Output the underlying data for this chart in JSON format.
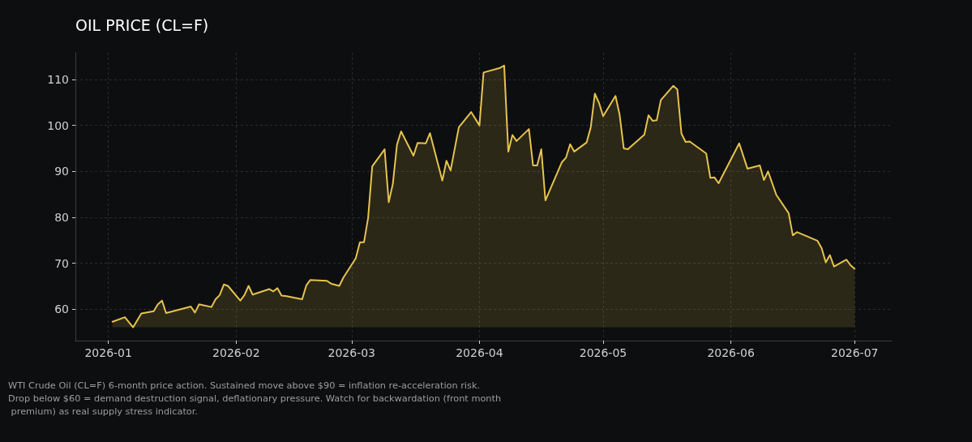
{
  "chart_data": {
    "type": "area",
    "title": "OIL PRICE (CL=F)",
    "x": [
      "2026-01-02",
      "2026-01-05",
      "2026-01-07",
      "2026-01-09",
      "2026-01-12",
      "2026-01-13",
      "2026-01-14",
      "2026-01-15",
      "2026-01-21",
      "2026-01-22",
      "2026-01-23",
      "2026-01-26",
      "2026-01-27",
      "2026-01-28",
      "2026-01-29",
      "2026-01-30",
      "2026-02-02",
      "2026-02-03",
      "2026-02-04",
      "2026-02-05",
      "2026-02-09",
      "2026-02-10",
      "2026-02-11",
      "2026-02-12",
      "2026-02-13",
      "2026-02-17",
      "2026-02-18",
      "2026-02-19",
      "2026-02-23",
      "2026-02-24",
      "2026-02-26",
      "2026-02-27",
      "2026-03-02",
      "2026-03-03",
      "2026-03-04",
      "2026-03-05",
      "2026-03-06",
      "2026-03-09",
      "2026-03-10",
      "2026-03-11",
      "2026-03-12",
      "2026-03-13",
      "2026-03-16",
      "2026-03-17",
      "2026-03-19",
      "2026-03-20",
      "2026-03-23",
      "2026-03-24",
      "2026-03-25",
      "2026-03-27",
      "2026-03-30",
      "2026-04-01",
      "2026-04-02",
      "2026-04-06",
      "2026-04-07",
      "2026-04-08",
      "2026-04-09",
      "2026-04-10",
      "2026-04-13",
      "2026-04-14",
      "2026-04-15",
      "2026-04-16",
      "2026-04-17",
      "2026-04-21",
      "2026-04-22",
      "2026-04-23",
      "2026-04-24",
      "2026-04-27",
      "2026-04-28",
      "2026-04-29",
      "2026-04-30",
      "2026-05-01",
      "2026-05-04",
      "2026-05-05",
      "2026-05-06",
      "2026-05-07",
      "2026-05-11",
      "2026-05-12",
      "2026-05-13",
      "2026-05-14",
      "2026-05-15",
      "2026-05-18",
      "2026-05-19",
      "2026-05-20",
      "2026-05-21",
      "2026-05-22",
      "2026-05-26",
      "2026-05-27",
      "2026-05-28",
      "2026-05-29",
      "2026-06-03",
      "2026-06-05",
      "2026-06-08",
      "2026-06-09",
      "2026-06-10",
      "2026-06-12",
      "2026-06-15",
      "2026-06-16",
      "2026-06-17",
      "2026-06-22",
      "2026-06-23",
      "2026-06-24",
      "2026-06-25",
      "2026-06-26",
      "2026-06-29",
      "2026-06-30",
      "2026-07-01"
    ],
    "values": [
      57.3,
      58.3,
      56.1,
      59.1,
      59.6,
      61.1,
      61.9,
      59.2,
      60.6,
      59.3,
      61.1,
      60.5,
      62.2,
      63.1,
      65.4,
      65.1,
      61.9,
      63.1,
      65.1,
      63.2,
      64.4,
      63.9,
      64.6,
      63.0,
      62.9,
      62.2,
      65.2,
      66.4,
      66.2,
      65.6,
      65.1,
      66.9,
      71.1,
      74.6,
      74.6,
      79.9,
      91.1,
      94.8,
      83.3,
      87.3,
      95.8,
      98.7,
      93.4,
      96.2,
      96.1,
      98.3,
      88.0,
      92.3,
      90.2,
      99.6,
      102.9,
      100.0,
      111.5,
      112.5,
      113.0,
      94.3,
      97.9,
      96.6,
      99.2,
      91.3,
      91.3,
      94.8,
      83.7,
      92.0,
      93.0,
      95.9,
      94.3,
      96.3,
      99.6,
      106.9,
      104.9,
      102.0,
      106.4,
      102.3,
      95.0,
      94.8,
      98.0,
      102.2,
      101.0,
      101.1,
      105.5,
      108.6,
      107.8,
      98.2,
      96.4,
      96.5,
      93.9,
      88.6,
      88.7,
      87.4,
      96.1,
      90.6,
      91.3,
      88.1,
      90.0,
      84.9,
      80.9,
      76.1,
      76.8,
      74.9,
      73.3,
      70.2,
      71.8,
      69.3,
      70.8,
      69.6,
      68.8
    ],
    "color": "#e6c34e",
    "xlim": [
      "2025-12-24",
      "2026-07-10"
    ],
    "xticks": [
      "2026-01",
      "2026-02",
      "2026-03",
      "2026-04",
      "2026-05",
      "2026-06",
      "2026-07"
    ],
    "ylim": [
      53.2,
      115.8
    ],
    "yticks": [
      60,
      70,
      80,
      90,
      100,
      110
    ],
    "grid": true,
    "annotations": [
      "WTI Crude Oil (CL=F) 6-month price action. Sustained move above $90 = inflation re-acceleration risk. Drop below $60 = demand destruction signal, deflationary pressure. Watch for backwardation (front month premium) as real supply stress indicator."
    ]
  }
}
